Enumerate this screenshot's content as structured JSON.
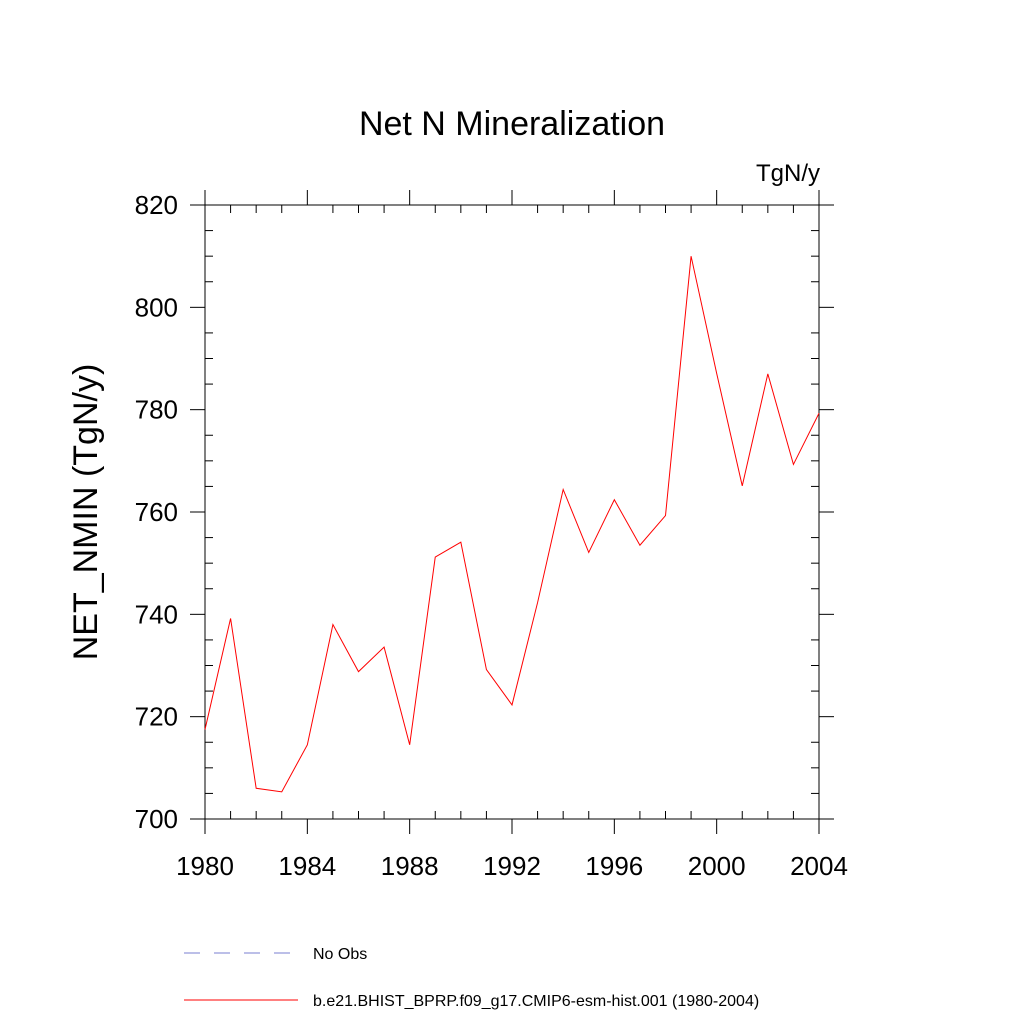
{
  "chart_data": {
    "type": "line",
    "title": "Net N Mineralization",
    "units_label": "TgN/y",
    "ylabel": "NET_NMIN  (TgN/y)",
    "xlabel": "",
    "xlim": [
      1980,
      2004
    ],
    "ylim": [
      700,
      820
    ],
    "x_ticks": [
      1980,
      1984,
      1988,
      1992,
      1996,
      2000,
      2004
    ],
    "y_ticks": [
      700,
      720,
      740,
      760,
      780,
      800,
      820
    ],
    "x_minor_step": 1,
    "y_minor_step": 5,
    "grid": false,
    "legend_position": "bottom",
    "series": [
      {
        "name": "b.e21.BHIST_BPRP.f09_g17.CMIP6-esm-hist.001 (1980-2004)",
        "color": "#ff0000",
        "style": "solid",
        "x": [
          1980,
          1981,
          1982,
          1983,
          1984,
          1985,
          1986,
          1987,
          1988,
          1989,
          1990,
          1991,
          1992,
          1993,
          1994,
          1995,
          1996,
          1997,
          1998,
          1999,
          2000,
          2001,
          2002,
          2003,
          2004
        ],
        "values": [
          717.5,
          739.2,
          706,
          705.3,
          714.5,
          738,
          728.8,
          733.6,
          714.5,
          751.2,
          754.1,
          729.2,
          722.3,
          742.3,
          764.4,
          752.1,
          762.4,
          753.5,
          759.3,
          810,
          787.1,
          765.1,
          787,
          769.3,
          779.3
        ]
      }
    ],
    "legend": [
      {
        "label": "No Obs",
        "color": "#7a7fd0",
        "style": "dashed"
      },
      {
        "label": "b.e21.BHIST_BPRP.f09_g17.CMIP6-esm-hist.001 (1980-2004)",
        "color": "#ff0000",
        "style": "solid"
      }
    ]
  }
}
